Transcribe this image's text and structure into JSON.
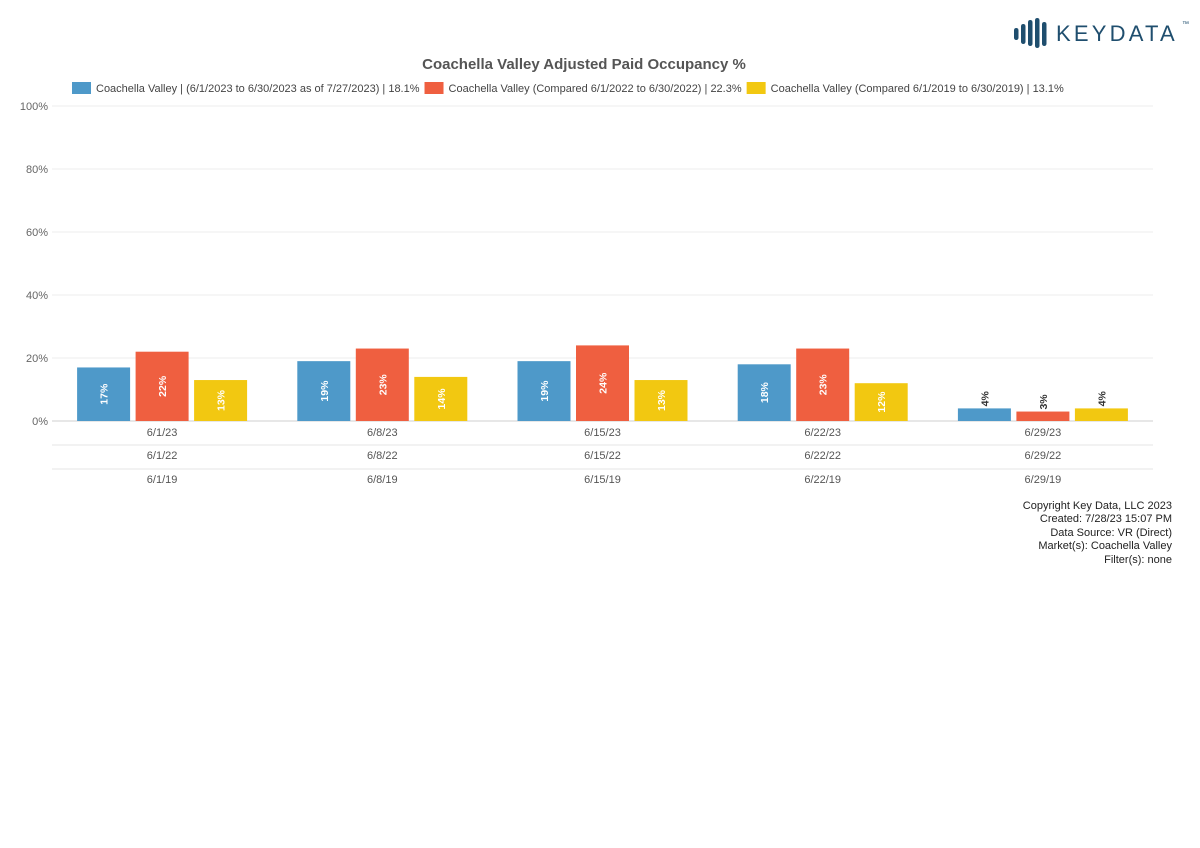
{
  "brand": {
    "name": "KEYDATA",
    "tm": "™",
    "color": "#1f4e6e"
  },
  "chart_data": {
    "type": "bar",
    "title": "Coachella Valley Adjusted Paid Occupancy %",
    "ylim": [
      0,
      100
    ],
    "yticks": [
      "0%",
      "20%",
      "40%",
      "60%",
      "80%",
      "100%"
    ],
    "grid": true,
    "legend_position": "top",
    "categories": [
      [
        "6/1/23",
        "6/1/22",
        "6/1/19"
      ],
      [
        "6/8/23",
        "6/8/22",
        "6/8/19"
      ],
      [
        "6/15/23",
        "6/15/22",
        "6/15/19"
      ],
      [
        "6/22/23",
        "6/22/22",
        "6/22/19"
      ],
      [
        "6/29/23",
        "6/29/22",
        "6/29/19"
      ]
    ],
    "series": [
      {
        "name": "Coachella Valley | (6/1/2023 to 6/30/2023 as of 7/27/2023) | 18.1%",
        "color": "#4e99c9",
        "values": [
          17,
          19,
          19,
          18,
          4
        ],
        "labels": [
          "17%",
          "19%",
          "19%",
          "18%",
          "4%"
        ]
      },
      {
        "name": "Coachella Valley (Compared 6/1/2022 to 6/30/2022) | 22.3%",
        "color": "#ef5f40",
        "values": [
          22,
          23,
          24,
          23,
          3
        ],
        "labels": [
          "22%",
          "23%",
          "24%",
          "23%",
          "3%"
        ]
      },
      {
        "name": "Coachella Valley (Compared 6/1/2019 to 6/30/2019) | 13.1%",
        "color": "#f2c811",
        "values": [
          13,
          14,
          13,
          12,
          4
        ],
        "labels": [
          "13%",
          "14%",
          "13%",
          "12%",
          "4%"
        ]
      }
    ]
  },
  "footer": {
    "lines": [
      "Copyright Key Data, LLC 2023",
      "Created: 7/28/23 15:07 PM",
      "Data Source: VR (Direct)",
      "Market(s):  Coachella Valley",
      "Filter(s): none"
    ]
  }
}
